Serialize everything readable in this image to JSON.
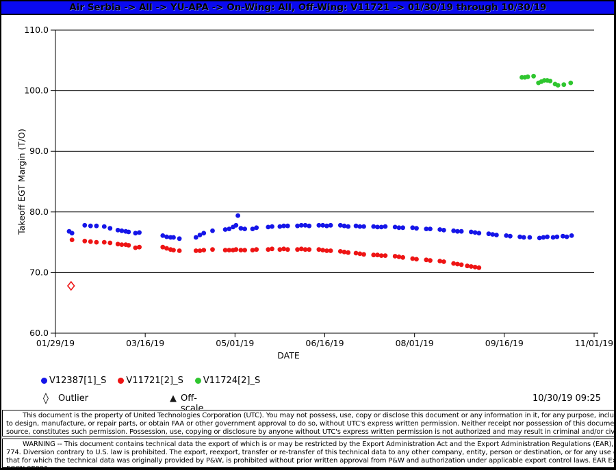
{
  "window": {
    "title": "Air Serbia -> All -> YU-APA -> On-Wing: All, Off-Wing: V11721 -> 01/30/19 through 10/30/19"
  },
  "chart_data": {
    "type": "scatter",
    "xlabel": "DATE",
    "ylabel": "Takeoff EGT Margin (T/O)",
    "x_ticks": [
      "01/29/19",
      "03/16/19",
      "05/01/19",
      "06/16/19",
      "08/01/19",
      "09/16/19",
      "11/01/19"
    ],
    "x_tick_days": [
      0,
      46,
      92,
      138,
      184,
      230,
      276
    ],
    "x_range_days": [
      0,
      276
    ],
    "y_ticks": [
      "110.0",
      "100.0",
      "90.0",
      "80.0",
      "70.0",
      "60.0"
    ],
    "y_tick_values": [
      110,
      100,
      90,
      80,
      70,
      60
    ],
    "ylim": [
      60,
      110
    ],
    "grid": "horizontal",
    "series": [
      {
        "name": "V12387[1]_S",
        "color": "#1515e8",
        "points": [
          [
            7,
            76.8
          ],
          [
            8.5,
            76.5
          ],
          [
            15,
            77.8
          ],
          [
            18,
            77.7
          ],
          [
            21,
            77.7
          ],
          [
            25,
            77.6
          ],
          [
            28,
            77.3
          ],
          [
            32,
            77.0
          ],
          [
            34,
            76.9
          ],
          [
            36,
            76.8
          ],
          [
            37.5,
            76.7
          ],
          [
            41,
            76.5
          ],
          [
            43,
            76.6
          ],
          [
            55,
            76.1
          ],
          [
            57,
            75.9
          ],
          [
            59,
            75.8
          ],
          [
            60.5,
            75.8
          ],
          [
            63.5,
            75.6
          ],
          [
            72,
            75.8
          ],
          [
            74,
            76.2
          ],
          [
            76,
            76.5
          ],
          [
            80.5,
            76.9
          ],
          [
            87,
            77.1
          ],
          [
            89,
            77.2
          ],
          [
            91,
            77.5
          ],
          [
            92.5,
            77.8
          ],
          [
            93.5,
            79.4
          ],
          [
            95,
            77.3
          ],
          [
            97,
            77.2
          ],
          [
            101,
            77.2
          ],
          [
            103,
            77.4
          ],
          [
            109,
            77.5
          ],
          [
            111,
            77.6
          ],
          [
            115,
            77.6
          ],
          [
            117,
            77.7
          ],
          [
            119,
            77.7
          ],
          [
            124,
            77.7
          ],
          [
            126,
            77.8
          ],
          [
            128,
            77.8
          ],
          [
            130,
            77.7
          ],
          [
            135,
            77.8
          ],
          [
            137,
            77.8
          ],
          [
            139,
            77.7
          ],
          [
            141,
            77.8
          ],
          [
            146,
            77.8
          ],
          [
            148,
            77.7
          ],
          [
            150,
            77.6
          ],
          [
            154,
            77.7
          ],
          [
            156,
            77.6
          ],
          [
            158,
            77.6
          ],
          [
            163,
            77.6
          ],
          [
            165,
            77.5
          ],
          [
            167,
            77.5
          ],
          [
            169,
            77.6
          ],
          [
            174,
            77.5
          ],
          [
            176,
            77.4
          ],
          [
            178,
            77.4
          ],
          [
            183,
            77.4
          ],
          [
            185,
            77.3
          ],
          [
            190,
            77.2
          ],
          [
            192,
            77.2
          ],
          [
            197,
            77.1
          ],
          [
            199,
            77.0
          ],
          [
            204,
            76.9
          ],
          [
            206,
            76.8
          ],
          [
            208,
            76.8
          ],
          [
            213,
            76.7
          ],
          [
            215,
            76.6
          ],
          [
            217,
            76.5
          ],
          [
            222,
            76.4
          ],
          [
            224,
            76.3
          ],
          [
            226,
            76.2
          ],
          [
            231,
            76.1
          ],
          [
            233,
            76.0
          ],
          [
            238,
            75.9
          ],
          [
            240,
            75.8
          ],
          [
            243,
            75.8
          ],
          [
            248,
            75.7
          ],
          [
            250,
            75.8
          ],
          [
            252,
            75.9
          ],
          [
            255,
            75.8
          ],
          [
            257,
            75.9
          ],
          [
            260,
            76.0
          ],
          [
            262,
            75.9
          ],
          [
            264.5,
            76.1
          ]
        ]
      },
      {
        "name": "V11721[2]_S",
        "color": "#ee1414",
        "points": [
          [
            8.5,
            75.4
          ],
          [
            15,
            75.2
          ],
          [
            18,
            75.1
          ],
          [
            21,
            75.0
          ],
          [
            25,
            75.0
          ],
          [
            28,
            74.9
          ],
          [
            32,
            74.7
          ],
          [
            34,
            74.6
          ],
          [
            36,
            74.6
          ],
          [
            37.5,
            74.5
          ],
          [
            41,
            74.1
          ],
          [
            43,
            74.2
          ],
          [
            55,
            74.2
          ],
          [
            57,
            74.0
          ],
          [
            59,
            73.8
          ],
          [
            60.5,
            73.7
          ],
          [
            63.5,
            73.6
          ],
          [
            72,
            73.6
          ],
          [
            74,
            73.6
          ],
          [
            76,
            73.7
          ],
          [
            80.5,
            73.8
          ],
          [
            87,
            73.7
          ],
          [
            89,
            73.7
          ],
          [
            91,
            73.7
          ],
          [
            92.5,
            73.8
          ],
          [
            95,
            73.7
          ],
          [
            97,
            73.7
          ],
          [
            101,
            73.7
          ],
          [
            103,
            73.8
          ],
          [
            109,
            73.8
          ],
          [
            111,
            73.9
          ],
          [
            115,
            73.8
          ],
          [
            117,
            73.9
          ],
          [
            119,
            73.8
          ],
          [
            124,
            73.8
          ],
          [
            126,
            73.9
          ],
          [
            128,
            73.8
          ],
          [
            130,
            73.8
          ],
          [
            135,
            73.8
          ],
          [
            137,
            73.7
          ],
          [
            139,
            73.6
          ],
          [
            141,
            73.6
          ],
          [
            146,
            73.5
          ],
          [
            148,
            73.4
          ],
          [
            150,
            73.3
          ],
          [
            154,
            73.2
          ],
          [
            156,
            73.1
          ],
          [
            158,
            73.0
          ],
          [
            163,
            72.9
          ],
          [
            165,
            72.9
          ],
          [
            167,
            72.8
          ],
          [
            169,
            72.8
          ],
          [
            174,
            72.7
          ],
          [
            176,
            72.6
          ],
          [
            178,
            72.5
          ],
          [
            183,
            72.3
          ],
          [
            185,
            72.2
          ],
          [
            190,
            72.1
          ],
          [
            192,
            72.0
          ],
          [
            197,
            71.9
          ],
          [
            199,
            71.8
          ],
          [
            204,
            71.5
          ],
          [
            206,
            71.4
          ],
          [
            208,
            71.3
          ],
          [
            211,
            71.1
          ],
          [
            213,
            71.0
          ],
          [
            215,
            70.9
          ],
          [
            217,
            70.8
          ]
        ]
      },
      {
        "name": "V11724[2]_S",
        "color": "#2fc62f",
        "points": [
          [
            239,
            102.2
          ],
          [
            240.5,
            102.2
          ],
          [
            242,
            102.3
          ],
          [
            245,
            102.4
          ],
          [
            247.5,
            101.3
          ],
          [
            249,
            101.5
          ],
          [
            250.5,
            101.7
          ],
          [
            252,
            101.7
          ],
          [
            253.5,
            101.6
          ],
          [
            256,
            101.1
          ],
          [
            257.5,
            100.9
          ],
          [
            260.5,
            101.0
          ],
          [
            264,
            101.3
          ]
        ]
      }
    ],
    "outliers": [
      {
        "series": "V11721[2]_S",
        "day": 8,
        "value": 67.8,
        "color": "#ee1414"
      }
    ]
  },
  "legend": {
    "outlier_label": "Outlier",
    "outlier_symbol": "◊",
    "offscale_label": "Off-scale",
    "offscale_symbol": "▲"
  },
  "status": {
    "timestamp": "10/30/19 09:25"
  },
  "footer": {
    "property_notice": "This document is the property of United Technologies Corporation (UTC).  You may not possess, use, copy or disclose this document or any information in it, for any purpose, including without limitation to design, manufacture, or repair parts, or obtain FAA or other government approval to do so, without UTC's express written permission. Neither receipt nor possession of this document alone, from any source, constitutes such permission.  Possession, use, copying or disclosure by anyone without UTC's express written permission is not authorized and may result in criminal and/or civil liability.",
    "warning_notice": "WARNING -- This document contains technical data the export of which is or may be restricted by the Export Administration Act and the Export Administration Regulations (EAR), 15 C.F.R. parts 730-774. Diversion contrary to U.S. law is prohibited. The export, reexport, transfer or re-transfer of this technical data to any other company, entity, person or destination, or for any use or purpose other than that for which the technical data was originally provided by P&W, is prohibited without prior written approval from P&W and authorization under applicable export control laws.  EAR Export Classification: ECCN 9E991."
  }
}
